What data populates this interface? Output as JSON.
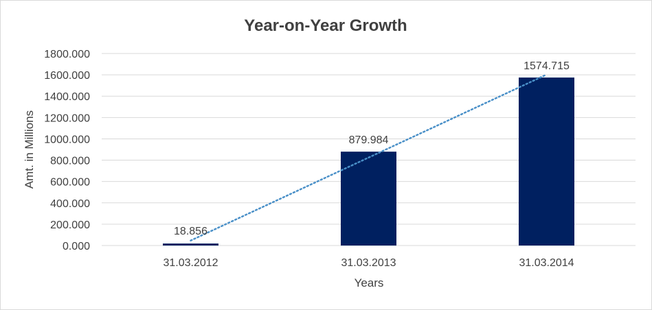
{
  "chart_data": {
    "type": "bar",
    "title": "Year-on-Year Growth",
    "xlabel": "Years",
    "ylabel": "Amt. in Millions",
    "categories": [
      "31.03.2012",
      "31.03.2013",
      "31.03.2014"
    ],
    "values": [
      18.856,
      879.984,
      1574.715
    ],
    "data_labels": [
      "18.856",
      "879.984",
      "1574.715"
    ],
    "ylim": [
      0,
      1800
    ],
    "yticks": [
      0,
      200,
      400,
      600,
      800,
      1000,
      1200,
      1400,
      1600,
      1800
    ],
    "ytick_labels": [
      "0.000",
      "200.000",
      "400.000",
      "600.000",
      "800.000",
      "1000.000",
      "1200.000",
      "1400.000",
      "1600.000",
      "1800.000"
    ],
    "grid": true,
    "legend": "none",
    "trendline": "linear",
    "colors": {
      "bar": "#002060",
      "trendline": "#4a90c8",
      "grid": "#d9d9d9",
      "text": "#404040"
    }
  }
}
